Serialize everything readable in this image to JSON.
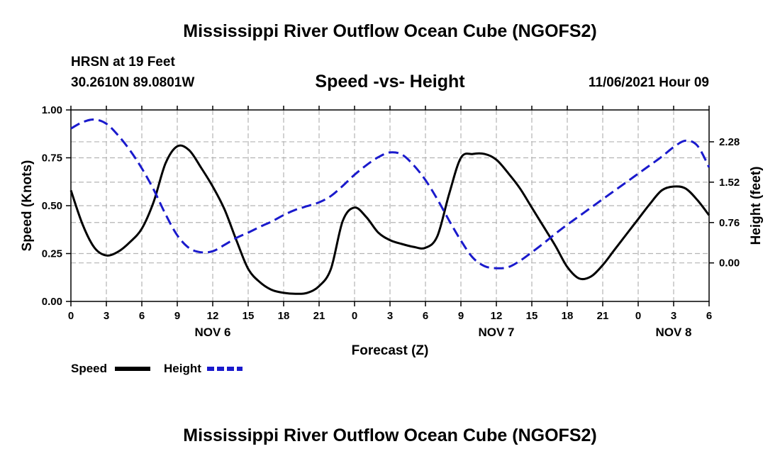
{
  "header": {
    "title": "Mississippi River Outflow Ocean Cube (NGOFS2)",
    "station": "HRSN at 19 Feet",
    "coords": "30.2610N  89.0801W",
    "subtitle": "Speed -vs- Height",
    "datetime": "11/06/2021 Hour 09"
  },
  "footer": {
    "title": "Mississippi River Outflow Ocean Cube (NGOFS2)"
  },
  "legend": {
    "speed_label": "Speed",
    "height_label": "Height"
  },
  "colors": {
    "speed": "#000000",
    "height": "#1a1acc",
    "grid": "#b4b4b4"
  },
  "chart_data": {
    "type": "line",
    "title": "Speed -vs- Height",
    "xlabel": "Forecast (Z)",
    "ylabel": "Speed (Knots)",
    "y2label": "Height (feet)",
    "xlim": [
      0,
      54
    ],
    "ylim": [
      0,
      1
    ],
    "y2lim": [
      -0.725,
      2.88
    ],
    "x_ticks": [
      0,
      3,
      6,
      9,
      12,
      15,
      18,
      21,
      24,
      27,
      30,
      33,
      36,
      39,
      42,
      45,
      48,
      51,
      54
    ],
    "x_tick_labels": [
      "0",
      "3",
      "6",
      "9",
      "12",
      "15",
      "18",
      "21",
      "0",
      "3",
      "6",
      "9",
      "12",
      "15",
      "18",
      "21",
      "0",
      "3",
      "6"
    ],
    "date_labels": [
      {
        "x": 12,
        "label": "NOV 6"
      },
      {
        "x": 36,
        "label": "NOV 7"
      },
      {
        "x": 51,
        "label": "NOV 8"
      }
    ],
    "y_ticks": [
      0,
      0.25,
      0.5,
      0.75,
      1.0
    ],
    "y_tick_labels": [
      "0.00",
      "0.25",
      "0.50",
      "0.75",
      "1.00"
    ],
    "y2_ticks": [
      0.0,
      0.76,
      1.52,
      2.28
    ],
    "y2_tick_labels": [
      "0.00",
      "0.76",
      "1.52",
      "2.28"
    ],
    "series": [
      {
        "name": "Speed",
        "axis": "left",
        "style": "solid",
        "x": [
          0,
          1,
          2,
          3,
          4,
          5,
          6,
          7,
          8,
          9,
          10,
          11,
          12,
          13,
          14,
          15,
          16,
          17,
          18,
          19,
          20,
          21,
          22,
          23,
          24,
          25,
          26,
          27,
          28,
          29,
          30,
          31,
          32,
          33,
          34,
          35,
          36,
          37,
          38,
          39,
          40,
          41,
          42,
          43,
          44,
          45,
          46,
          47,
          48,
          49,
          50,
          51,
          52,
          53,
          54
        ],
        "values": [
          0.58,
          0.4,
          0.28,
          0.24,
          0.26,
          0.31,
          0.38,
          0.52,
          0.72,
          0.81,
          0.79,
          0.7,
          0.6,
          0.48,
          0.32,
          0.17,
          0.1,
          0.06,
          0.045,
          0.04,
          0.045,
          0.08,
          0.17,
          0.42,
          0.49,
          0.44,
          0.36,
          0.32,
          0.3,
          0.285,
          0.28,
          0.34,
          0.56,
          0.75,
          0.77,
          0.77,
          0.74,
          0.67,
          0.59,
          0.49,
          0.39,
          0.29,
          0.18,
          0.12,
          0.13,
          0.19,
          0.27,
          0.35,
          0.43,
          0.51,
          0.58,
          0.6,
          0.59,
          0.53,
          0.45
        ]
      },
      {
        "name": "Height",
        "axis": "right",
        "style": "dashed",
        "x": [
          0,
          1,
          2,
          3,
          4,
          5,
          6,
          7,
          8,
          9,
          10,
          11,
          12,
          13,
          14,
          15,
          16,
          17,
          18,
          19,
          20,
          21,
          22,
          23,
          24,
          25,
          26,
          27,
          28,
          29,
          30,
          31,
          32,
          33,
          34,
          35,
          36,
          37,
          38,
          39,
          40,
          41,
          42,
          43,
          44,
          45,
          46,
          47,
          48,
          49,
          50,
          51,
          52,
          53,
          54
        ],
        "values": [
          2.53,
          2.65,
          2.7,
          2.62,
          2.4,
          2.12,
          1.78,
          1.38,
          0.92,
          0.52,
          0.28,
          0.2,
          0.22,
          0.34,
          0.47,
          0.57,
          0.68,
          0.78,
          0.9,
          1.0,
          1.07,
          1.14,
          1.26,
          1.45,
          1.66,
          1.84,
          1.99,
          2.08,
          2.04,
          1.84,
          1.56,
          1.2,
          0.8,
          0.42,
          0.1,
          -0.06,
          -0.1,
          -0.08,
          0.04,
          0.2,
          0.37,
          0.55,
          0.72,
          0.88,
          1.04,
          1.2,
          1.36,
          1.52,
          1.68,
          1.84,
          2.0,
          2.18,
          2.3,
          2.21,
          1.8
        ]
      }
    ]
  },
  "chart_data_note_removed": true
}
